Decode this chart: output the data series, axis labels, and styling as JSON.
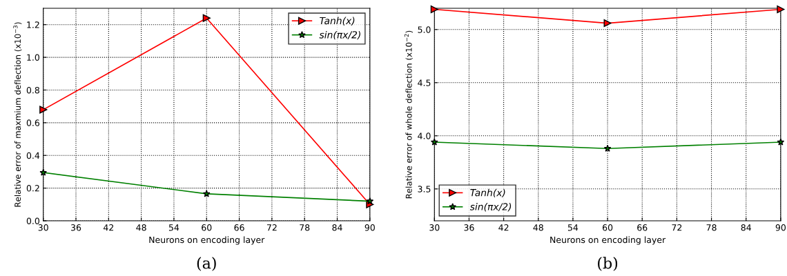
{
  "chart_data": [
    {
      "type": "line",
      "xlabel": "Neurons on encoding layer",
      "ylabel": "Relative error of maxmium deflection (x10$^{−3}$)",
      "annotations": [
        "(a)"
      ],
      "x": [
        30,
        60,
        90
      ],
      "xlim": [
        30,
        90
      ],
      "xticks": [
        30,
        36,
        42,
        48,
        54,
        60,
        66,
        72,
        78,
        84,
        90
      ],
      "ylim": [
        0,
        1.3
      ],
      "yticks": [
        {
          "value": 0,
          "label": "0.0"
        },
        0.2,
        0.4,
        0.6,
        0.8,
        {
          "value": 1,
          "label": "1.0"
        },
        1.2
      ],
      "grid": true,
      "legend": "top right",
      "series": [
        {
          "name": "Tanh(x)",
          "color": "#ff0000",
          "marker": "triangle",
          "values": [
            0.68,
            1.24,
            0.1
          ]
        },
        {
          "name": "sin(πx/2)",
          "color": "#008000",
          "marker": "star",
          "values": [
            0.295,
            0.165,
            0.12
          ]
        }
      ]
    },
    {
      "type": "line",
      "xlabel": "Neurons on encoding layer",
      "ylabel": "Relative error of whole deflection (x10$^{−2}$)",
      "annotations": [
        "(b)"
      ],
      "x": [
        30,
        60,
        90
      ],
      "xlim": [
        30,
        90
      ],
      "xticks": [
        30,
        36,
        42,
        48,
        54,
        60,
        66,
        72,
        78,
        84,
        90
      ],
      "ylim": [
        3.2,
        5.2
      ],
      "yticks": [
        3.5,
        {
          "value": 4,
          "label": "4.0"
        },
        4.5,
        {
          "value": 5,
          "label": "5.0"
        }
      ],
      "grid": true,
      "legend": "bottom left",
      "series": [
        {
          "name": "Tanh(x)",
          "color": "#ff0000",
          "marker": "triangle",
          "values": [
            5.19,
            5.06,
            5.19
          ]
        },
        {
          "name": "sin(πx/2)",
          "color": "#008000",
          "marker": "star",
          "values": [
            3.94,
            3.88,
            3.94
          ]
        }
      ]
    }
  ]
}
